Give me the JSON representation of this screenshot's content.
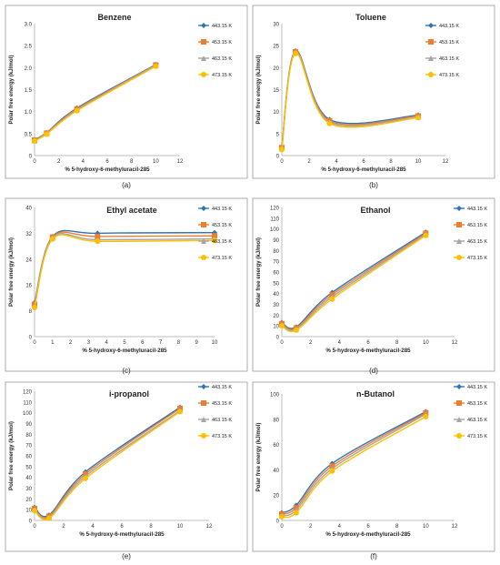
{
  "series_colors": [
    "#2e75b6",
    "#ed7d31",
    "#a5a5a5",
    "#ffc000"
  ],
  "chart_data": [
    {
      "type": "line",
      "panel_label": "(a)",
      "title": "Benzene",
      "xlabel": "% 5-hydroxy-6-methyluracil-285",
      "ylabel": "Polar free energy (kJ/mol)",
      "xlim": [
        0,
        12
      ],
      "ylim": [
        0,
        3
      ],
      "xticks": [
        0,
        2,
        4,
        6,
        8,
        10,
        12
      ],
      "yticks": [
        "0",
        "0.5",
        "1.0",
        "1.5",
        "2.0",
        "2.5",
        "3.0"
      ],
      "x": [
        0,
        1,
        3.5,
        10
      ],
      "legend": "right",
      "series": [
        {
          "name": "443.15 K",
          "values": [
            0.36,
            0.52,
            1.08,
            2.07
          ]
        },
        {
          "name": "453.15 K",
          "values": [
            0.35,
            0.51,
            1.06,
            2.06
          ]
        },
        {
          "name": "463.15 K",
          "values": [
            0.34,
            0.5,
            1.04,
            2.05
          ]
        },
        {
          "name": "473.15 K",
          "values": [
            0.33,
            0.49,
            1.02,
            2.03
          ]
        }
      ]
    },
    {
      "type": "line",
      "panel_label": "(b)",
      "title": "Toluene",
      "xlabel": "% 5-hydroxy-6-methyluracil-285",
      "ylabel": "Polar free energy (kJ/mol)",
      "xlim": [
        0,
        12
      ],
      "ylim": [
        0,
        30
      ],
      "xticks": [
        0,
        2,
        4,
        6,
        8,
        10,
        12
      ],
      "yticks": [
        "0",
        "5",
        "10",
        "15",
        "20",
        "25",
        "30"
      ],
      "x": [
        0,
        1,
        3.5,
        10
      ],
      "legend": "right",
      "series": [
        {
          "name": "443.15 K",
          "values": [
            2.0,
            23.8,
            8.2,
            9.2
          ]
        },
        {
          "name": "453.15 K",
          "values": [
            1.8,
            23.6,
            7.9,
            9.0
          ]
        },
        {
          "name": "463.15 K",
          "values": [
            1.6,
            23.4,
            7.6,
            8.8
          ]
        },
        {
          "name": "473.15 K",
          "values": [
            1.4,
            23.2,
            7.3,
            8.6
          ]
        }
      ]
    },
    {
      "type": "line",
      "panel_label": "(c)",
      "title": "Ethyl acetate",
      "xlabel": "% 5-hydroxy-6-methyluracil-285",
      "ylabel": "Polar free energy (kJ/mol)",
      "xlim": [
        0,
        10
      ],
      "ylim": [
        0,
        40
      ],
      "xticks": [
        0,
        1,
        2,
        3,
        4,
        5,
        6,
        7,
        8,
        9,
        10
      ],
      "yticks": [
        "0",
        "8",
        "16",
        "24",
        "32",
        "40"
      ],
      "x": [
        0,
        1,
        3.5,
        10
      ],
      "legend": "right",
      "series": [
        {
          "name": "443.15 K",
          "values": [
            10.5,
            31.0,
            32.0,
            32.2
          ]
        },
        {
          "name": "453.15 K",
          "values": [
            10.0,
            30.8,
            31.0,
            31.2
          ]
        },
        {
          "name": "463.15 K",
          "values": [
            9.5,
            30.5,
            30.0,
            30.3
          ]
        },
        {
          "name": "473.15 K",
          "values": [
            9.0,
            30.2,
            29.5,
            29.8
          ]
        }
      ]
    },
    {
      "type": "line",
      "panel_label": "(d)",
      "title": "Ethanol",
      "xlabel": "% 5-hydroxy-6-methyluracil-285",
      "ylabel": "Polar free energy (kJ/mol)",
      "xlim": [
        0,
        12
      ],
      "ylim": [
        0,
        120
      ],
      "xticks": [
        0,
        2,
        4,
        6,
        8,
        10,
        12
      ],
      "yticks": [
        "0",
        "10",
        "20",
        "30",
        "40",
        "50",
        "60",
        "70",
        "80",
        "90",
        "100",
        "110",
        "120"
      ],
      "x": [
        0,
        1,
        3.5,
        10
      ],
      "legend": "right",
      "series": [
        {
          "name": "443.15 K",
          "values": [
            13,
            9,
            41,
            97
          ]
        },
        {
          "name": "453.15 K",
          "values": [
            12,
            8,
            39,
            96
          ]
        },
        {
          "name": "463.15 K",
          "values": [
            11,
            7,
            37,
            95
          ]
        },
        {
          "name": "473.15 K",
          "values": [
            10,
            6,
            35,
            94
          ]
        }
      ]
    },
    {
      "type": "line",
      "panel_label": "(e)",
      "title": "i-propanol",
      "xlabel": "% 5-hydroxy-6-methyluracil-285",
      "ylabel": "Polar free energy (kJ/mol)",
      "xlim": [
        0,
        12
      ],
      "ylim": [
        0,
        120
      ],
      "xticks": [
        0,
        2,
        4,
        6,
        8,
        10,
        12
      ],
      "yticks": [
        "0",
        "10",
        "20",
        "30",
        "40",
        "50",
        "60",
        "70",
        "80",
        "90",
        "100",
        "110",
        "120"
      ],
      "x": [
        0,
        1,
        3.5,
        10
      ],
      "legend": "right",
      "series": [
        {
          "name": "443.15 K",
          "values": [
            12,
            5,
            45,
            105
          ]
        },
        {
          "name": "453.15 K",
          "values": [
            11,
            4,
            43,
            104
          ]
        },
        {
          "name": "463.15 K",
          "values": [
            10,
            3,
            41,
            102
          ]
        },
        {
          "name": "473.15 K",
          "values": [
            9,
            2,
            39,
            101
          ]
        }
      ]
    },
    {
      "type": "line",
      "panel_label": "(f)",
      "title": "n-Butanol",
      "xlabel": "% 5-hydroxy-6-methyluracil-285",
      "ylabel": "Polar free energy (kJ/mol)",
      "xlim": [
        0,
        12
      ],
      "ylim": [
        0,
        100
      ],
      "xticks": [
        0,
        2,
        4,
        6,
        8,
        10,
        12
      ],
      "yticks": [
        "0",
        "20",
        "40",
        "60",
        "80",
        "100"
      ],
      "x": [
        0,
        1,
        3.5,
        10
      ],
      "legend": "right",
      "series": [
        {
          "name": "443.15 K",
          "values": [
            6,
            12,
            45,
            86
          ]
        },
        {
          "name": "453.15 K",
          "values": [
            5,
            10,
            43,
            85
          ]
        },
        {
          "name": "463.15 K",
          "values": [
            4,
            8,
            41,
            84
          ]
        },
        {
          "name": "473.15 K",
          "values": [
            3,
            6,
            39,
            82
          ]
        }
      ]
    }
  ]
}
